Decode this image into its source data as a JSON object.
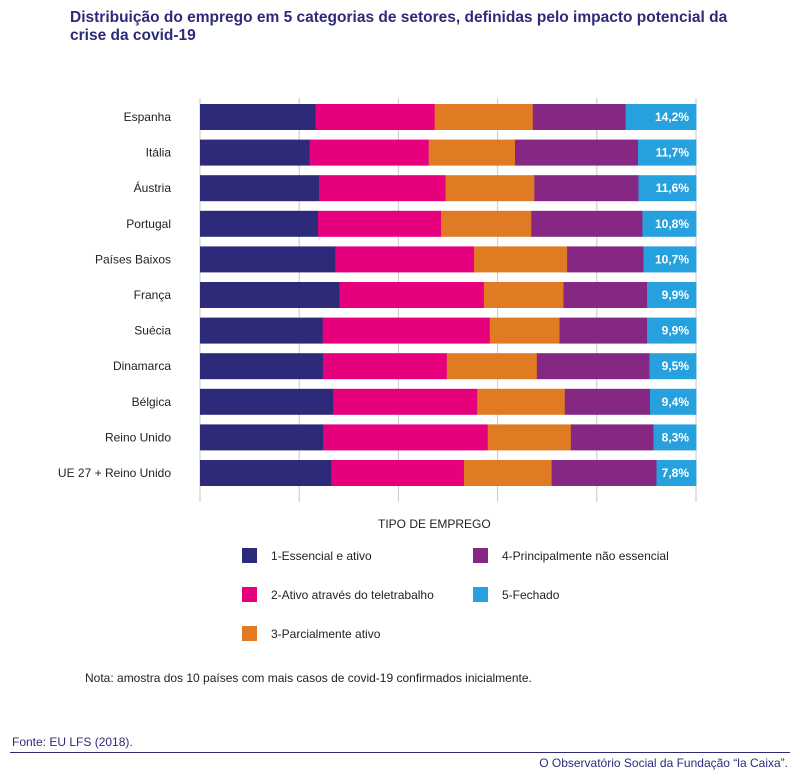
{
  "title": "Distribuição do emprego em 5 categorias de setores, definidas pelo impacto potencial da crise da covid-19",
  "chart_data": {
    "type": "bar",
    "orientation": "horizontal",
    "stacked": true,
    "percent_stacked": true,
    "categories": [
      "Espanha",
      "Itália",
      "Áustria",
      "Portugal",
      "Países Baixos",
      "França",
      "Suécia",
      "Dinamarca",
      "Bélgica",
      "Reino Unido",
      "UE 27 + Reino Unido"
    ],
    "series": [
      {
        "name": "1-Essencial e ativo",
        "color": "#2e2a7a",
        "values": [
          23.3,
          22.1,
          24.0,
          23.8,
          27.5,
          28.2,
          24.8,
          25.1,
          27.2,
          24.0,
          25.9
        ]
      },
      {
        "name": "2-Ativo através do teletrabalho",
        "color": "#e6007e",
        "values": [
          24.0,
          24.0,
          25.5,
          24.8,
          28.2,
          29.2,
          33.8,
          25.3,
          29.4,
          32.1,
          26.2
        ]
      },
      {
        "name": "3-Parcialmente ativo",
        "color": "#e07b23",
        "values": [
          19.8,
          17.4,
          17.9,
          18.2,
          18.9,
          16.1,
          14.1,
          18.4,
          17.9,
          16.2,
          17.3
        ]
      },
      {
        "name": "4-Principalmente não essencial",
        "color": "#862783",
        "values": [
          18.7,
          24.8,
          21.0,
          22.4,
          15.5,
          16.9,
          17.7,
          23.0,
          17.4,
          16.1,
          20.7
        ]
      },
      {
        "name": "5-Fechado",
        "color": "#27a1de",
        "values": [
          14.2,
          11.7,
          11.6,
          10.8,
          10.7,
          9.9,
          9.9,
          9.5,
          9.4,
          8.3,
          7.8
        ]
      }
    ],
    "data_labels_series": "5-Fechado",
    "data_labels": [
      "14,2%",
      "11,7%",
      "11,6%",
      "10,8%",
      "10,7%",
      "9,9%",
      "9,9%",
      "9,5%",
      "9,4%",
      "8,3%",
      "7,8%"
    ],
    "xlim": [
      0,
      100
    ],
    "legend_title": "TIPO DE EMPREGO",
    "legend_position": "bottom"
  },
  "legend": {
    "title": "TIPO DE EMPREGO",
    "items": [
      {
        "label": "1-Essencial e ativo",
        "color": "#2e2a7a"
      },
      {
        "label": "2-Ativo através do teletrabalho",
        "color": "#e6007e"
      },
      {
        "label": "3-Parcialmente ativo",
        "color": "#e07b23"
      },
      {
        "label": "4-Principalmente não essencial",
        "color": "#862783"
      },
      {
        "label": "5-Fechado",
        "color": "#27a1de"
      }
    ]
  },
  "note": "Nota: amostra dos 10 países com mais casos de covid-19 confirmados inicialmente.",
  "source": "Fonte: EU LFS (2018).",
  "credit": "O Observatório Social da Fundação “la Caixa”."
}
